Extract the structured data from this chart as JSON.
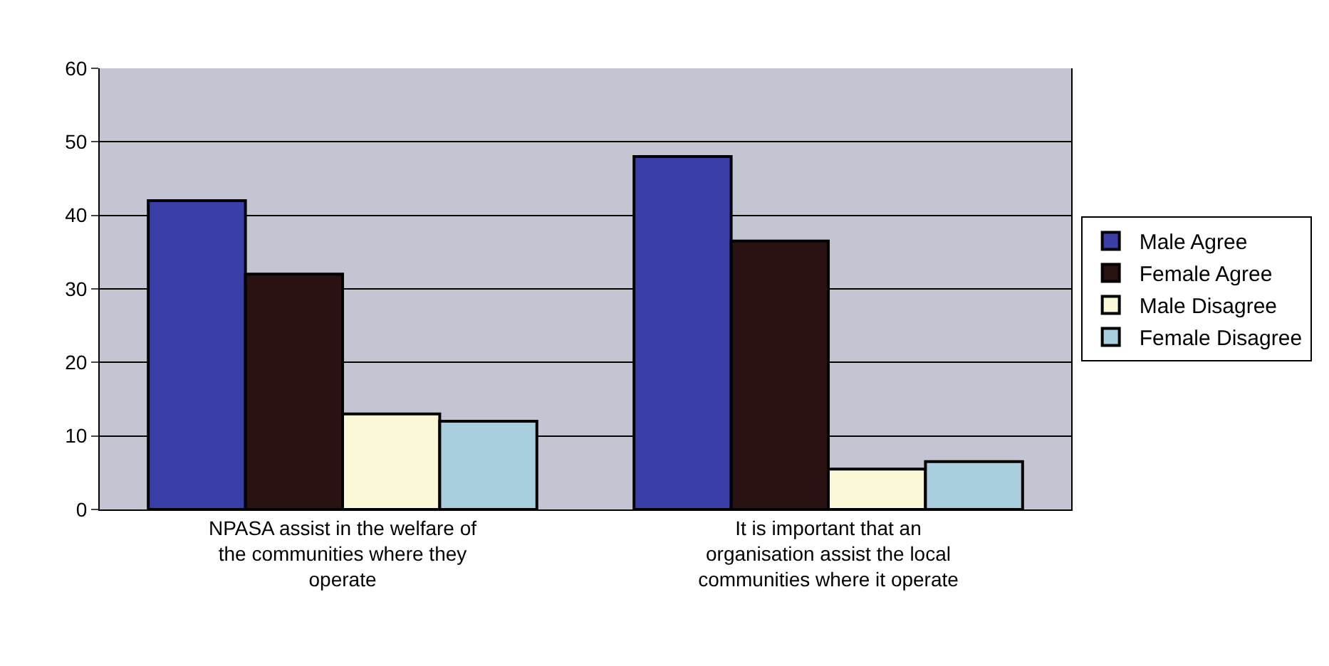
{
  "chart_data": {
    "type": "bar",
    "categories": [
      "NPASA assist in the welfare of the communities where they operate",
      "It is important that an organisation assist the local communities where it operate"
    ],
    "series": [
      {
        "name": "Male Agree",
        "color": "#3a3fa8",
        "values": [
          42,
          48
        ]
      },
      {
        "name": "Female Agree",
        "color": "#2a1212",
        "values": [
          32,
          36.5
        ]
      },
      {
        "name": "Male Disagree",
        "color": "#fbf8d8",
        "values": [
          13,
          5.5
        ]
      },
      {
        "name": "Female Disagree",
        "color": "#a9cfdf",
        "values": [
          12,
          6.5
        ]
      }
    ],
    "ylim": [
      0,
      60
    ],
    "yticks": [
      0,
      10,
      20,
      30,
      40,
      50,
      60
    ],
    "grid": "y",
    "legend": "right"
  }
}
